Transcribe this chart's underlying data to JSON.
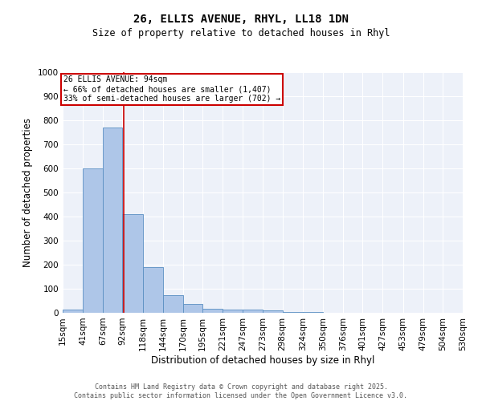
{
  "title1": "26, ELLIS AVENUE, RHYL, LL18 1DN",
  "title2": "Size of property relative to detached houses in Rhyl",
  "xlabel": "Distribution of detached houses by size in Rhyl",
  "ylabel": "Number of detached properties",
  "bin_edges": [
    15,
    41,
    67,
    92,
    118,
    144,
    170,
    195,
    221,
    247,
    273,
    298,
    324,
    350,
    376,
    401,
    427,
    453,
    479,
    504,
    530
  ],
  "bar_heights": [
    15,
    600,
    770,
    410,
    190,
    75,
    38,
    17,
    15,
    13,
    10,
    5,
    2,
    1,
    1,
    0,
    0,
    0,
    0,
    0
  ],
  "bar_color": "#aec6e8",
  "bar_edge_color": "#5a8fc2",
  "property_size": 94,
  "vline_color": "#cc0000",
  "annotation_text": "26 ELLIS AVENUE: 94sqm\n← 66% of detached houses are smaller (1,407)\n33% of semi-detached houses are larger (702) →",
  "annotation_box_color": "#cc0000",
  "annotation_text_color": "black",
  "ylim": [
    0,
    1000
  ],
  "background_color": "#edf1f9",
  "footer_text": "Contains HM Land Registry data © Crown copyright and database right 2025.\nContains public sector information licensed under the Open Government Licence v3.0.",
  "tick_labels": [
    "15sqm",
    "41sqm",
    "67sqm",
    "92sqm",
    "118sqm",
    "144sqm",
    "170sqm",
    "195sqm",
    "221sqm",
    "247sqm",
    "273sqm",
    "298sqm",
    "324sqm",
    "350sqm",
    "376sqm",
    "401sqm",
    "427sqm",
    "453sqm",
    "479sqm",
    "504sqm",
    "530sqm"
  ]
}
